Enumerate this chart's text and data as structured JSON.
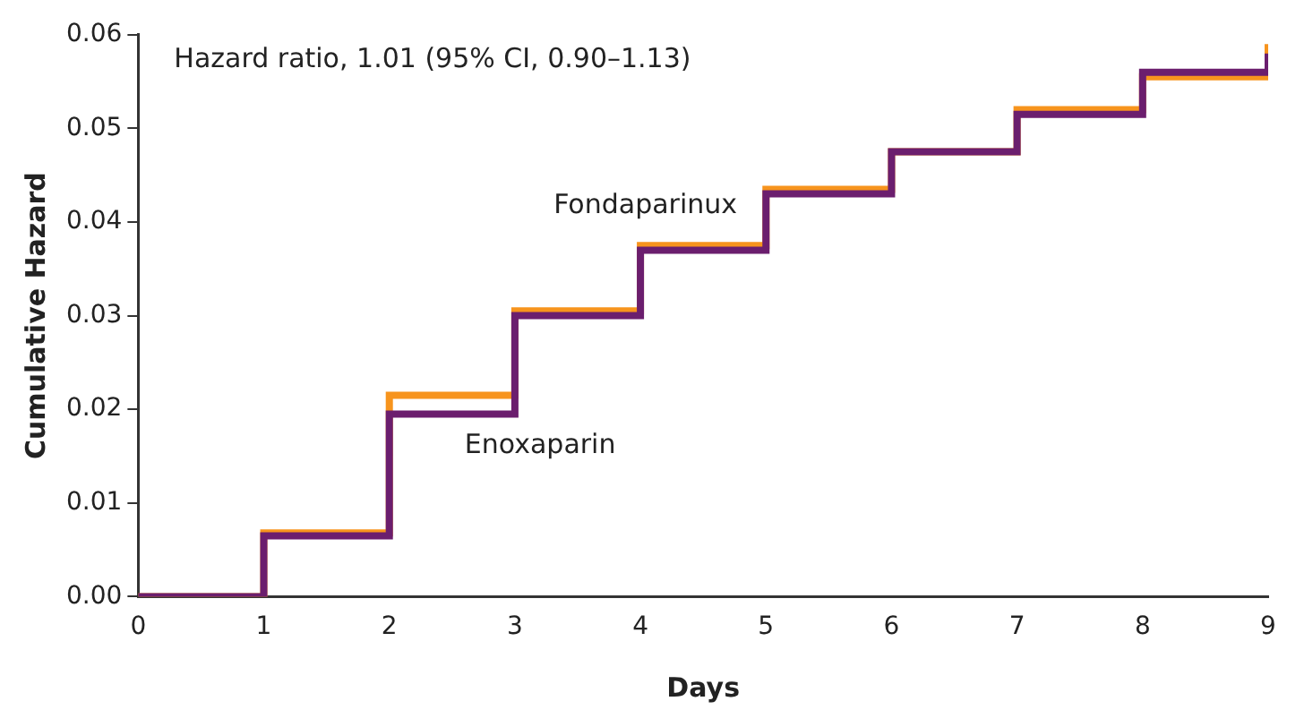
{
  "chart_data": {
    "type": "step",
    "xlabel": "Days",
    "ylabel": "Cumulative Hazard",
    "annotations": [
      "Hazard ratio, 1.01 (95% CI, 0.90–1.13)"
    ],
    "x": [
      0,
      1,
      2,
      3,
      4,
      5,
      6,
      7,
      8,
      9
    ],
    "series": [
      {
        "name": "Enoxaparin",
        "color": "#6b1e6e",
        "values": [
          0,
          0.0065,
          0.0195,
          0.03,
          0.037,
          0.043,
          0.0475,
          0.0515,
          0.056,
          0.058
        ]
      },
      {
        "name": "Fondaparinux",
        "color": "#f7941d",
        "values": [
          0,
          0.0068,
          0.0215,
          0.0305,
          0.0375,
          0.0435,
          0.0475,
          0.052,
          0.0555,
          0.059
        ]
      }
    ],
    "xlim": [
      0,
      9
    ],
    "xticks": [
      0,
      1,
      2,
      3,
      4,
      5,
      6,
      7,
      8,
      9
    ],
    "ylim": [
      0,
      0.06
    ],
    "yticks": [
      {
        "value": 0,
        "label": "0.00"
      },
      {
        "value": 0.01,
        "label": "0.01"
      },
      {
        "value": 0.02,
        "label": "0.02"
      },
      {
        "value": 0.03,
        "label": "0.03"
      },
      {
        "value": 0.04,
        "label": "0.04"
      },
      {
        "value": 0.05,
        "label": "0.05"
      },
      {
        "value": 0.06,
        "label": "0.06"
      }
    ],
    "grid": false,
    "legend": false,
    "line_style": "solid",
    "marker": "none"
  }
}
